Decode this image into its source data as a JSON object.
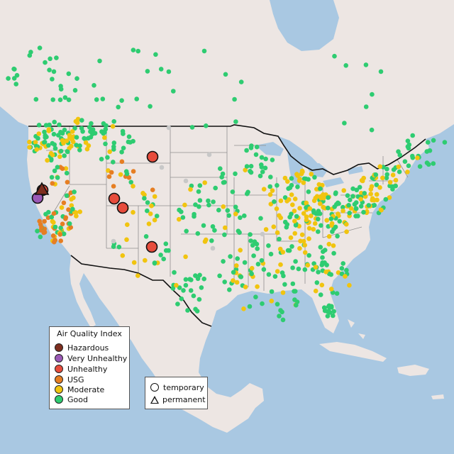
{
  "legend": {
    "title": "Air Quality Index",
    "items": [
      {
        "label": "Hazardous",
        "color": "#7e2e1f"
      },
      {
        "label": "Very Unhealthy",
        "color": "#9b59b6"
      },
      {
        "label": "Unhealthy",
        "color": "#e74c3c"
      },
      {
        "label": "USG",
        "color": "#e67e22"
      },
      {
        "label": "Moderate",
        "color": "#f1c40f"
      },
      {
        "label": "Good",
        "color": "#2ecc71"
      }
    ]
  },
  "type_legend": {
    "items": [
      {
        "label": "temporary",
        "shape": "circle"
      },
      {
        "label": "permanent",
        "shape": "triangle"
      }
    ]
  },
  "colors": {
    "water": "#a9c8e2",
    "land": "#ede6e3",
    "state_border": "#8f8f8f",
    "country_border": "#111111",
    "no_data": "#c8c8c8"
  }
}
